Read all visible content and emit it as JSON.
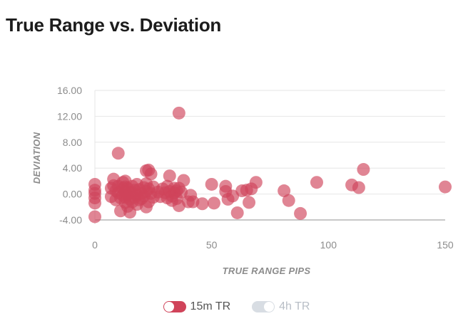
{
  "title": "True Range vs. Deviation",
  "colors": {
    "series_active": "#d0445a",
    "series_inactive": "#d8dde3",
    "grid": "#e6e6e6",
    "axis_line": "#c8c8c8"
  },
  "legend": [
    {
      "label": "15m TR",
      "active": true
    },
    {
      "label": "4h TR",
      "active": false
    }
  ],
  "chart_data": {
    "type": "scatter",
    "title": "True Range vs. Deviation",
    "xlabel": "TRUE RANGE PIPS",
    "ylabel": "DEVIATION",
    "xlim": [
      0,
      150
    ],
    "ylim": [
      -4,
      16
    ],
    "x_ticks": [
      "0",
      "50",
      "100",
      "150"
    ],
    "y_ticks": [
      "-4.00",
      "0.00",
      "4.00",
      "8.00",
      "12.00",
      "16.00"
    ],
    "grid": true,
    "legend_position": "bottom",
    "series": [
      {
        "name": "15m TR",
        "visible": true,
        "points": [
          [
            0,
            1.5
          ],
          [
            0,
            0.6
          ],
          [
            0,
            0.1
          ],
          [
            0,
            -0.6
          ],
          [
            0,
            -1.4
          ],
          [
            0,
            -3.5
          ],
          [
            7,
            0.9
          ],
          [
            7,
            -0.4
          ],
          [
            8,
            2.3
          ],
          [
            8,
            1.3
          ],
          [
            9,
            0.5
          ],
          [
            9,
            -0.9
          ],
          [
            10,
            6.3
          ],
          [
            10,
            1.2
          ],
          [
            10,
            0.2
          ],
          [
            11,
            -0.6
          ],
          [
            11,
            -2.6
          ],
          [
            12,
            1.8
          ],
          [
            12,
            0.9
          ],
          [
            12,
            -0.2
          ],
          [
            13,
            2.0
          ],
          [
            13,
            1.1
          ],
          [
            13,
            0.4
          ],
          [
            13,
            -0.5
          ],
          [
            13,
            -1.3
          ],
          [
            14,
            0.9
          ],
          [
            14,
            -0.2
          ],
          [
            14,
            -1.9
          ],
          [
            15,
            0.3
          ],
          [
            15,
            -0.8
          ],
          [
            15,
            -2.8
          ],
          [
            16,
            1.2
          ],
          [
            16,
            0.2
          ],
          [
            16,
            -1.2
          ],
          [
            17,
            0.6
          ],
          [
            17,
            -0.5
          ],
          [
            18,
            1.5
          ],
          [
            18,
            -0.2
          ],
          [
            18,
            -1.6
          ],
          [
            19,
            0.7
          ],
          [
            19,
            -0.9
          ],
          [
            20,
            0.1
          ],
          [
            20,
            -0.7
          ],
          [
            21,
            1.0
          ],
          [
            21,
            -0.3
          ],
          [
            22,
            3.6
          ],
          [
            22,
            1.6
          ],
          [
            22,
            0.4
          ],
          [
            22,
            -2.0
          ],
          [
            23,
            3.7
          ],
          [
            23,
            0.8
          ],
          [
            23,
            -1.2
          ],
          [
            24,
            3.1
          ],
          [
            24,
            0.1
          ],
          [
            25,
            1.1
          ],
          [
            25,
            -0.5
          ],
          [
            27,
            0.3
          ],
          [
            28,
            -0.4
          ],
          [
            29,
            0.8
          ],
          [
            30,
            0.2
          ],
          [
            31,
            1.2
          ],
          [
            31,
            -0.6
          ],
          [
            32,
            2.8
          ],
          [
            32,
            0.4
          ],
          [
            33,
            -0.3
          ],
          [
            33,
            -1.0
          ],
          [
            34,
            0.9
          ],
          [
            34,
            0.2
          ],
          [
            35,
            0.5
          ],
          [
            35,
            -0.7
          ],
          [
            36,
            12.5
          ],
          [
            36,
            0.9
          ],
          [
            36,
            -1.8
          ],
          [
            37,
            0.3
          ],
          [
            38,
            2.1
          ],
          [
            40,
            -1.2
          ],
          [
            41,
            -0.2
          ],
          [
            42,
            -1.2
          ],
          [
            46,
            -1.5
          ],
          [
            50,
            1.5
          ],
          [
            51,
            -1.4
          ],
          [
            56,
            1.2
          ],
          [
            56,
            0.4
          ],
          [
            57,
            -0.8
          ],
          [
            59,
            -0.3
          ],
          [
            61,
            -2.9
          ],
          [
            63,
            0.5
          ],
          [
            65,
            0.6
          ],
          [
            66,
            -1.3
          ],
          [
            67,
            0.8
          ],
          [
            69,
            1.8
          ],
          [
            81,
            0.5
          ],
          [
            83,
            -1.0
          ],
          [
            88,
            -3.0
          ],
          [
            95,
            1.8
          ],
          [
            110,
            1.4
          ],
          [
            113,
            1.0
          ],
          [
            115,
            3.8
          ],
          [
            150,
            1.1
          ]
        ]
      },
      {
        "name": "4h TR",
        "visible": false,
        "points": []
      }
    ]
  }
}
